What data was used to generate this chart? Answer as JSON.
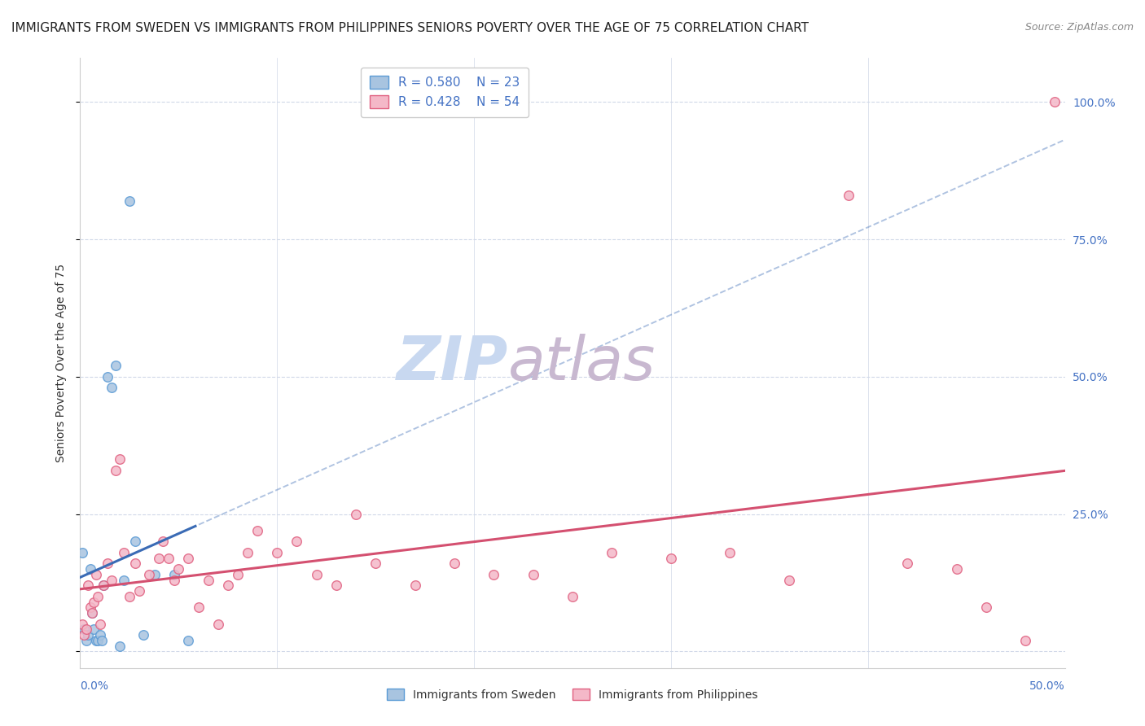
{
  "title": "IMMIGRANTS FROM SWEDEN VS IMMIGRANTS FROM PHILIPPINES SENIORS POVERTY OVER THE AGE OF 75 CORRELATION CHART",
  "source": "Source: ZipAtlas.com",
  "ylabel": "Seniors Poverty Over the Age of 75",
  "ytick_values": [
    0.0,
    0.25,
    0.5,
    0.75,
    1.0
  ],
  "xlim": [
    0.0,
    0.5
  ],
  "ylim": [
    -0.03,
    1.08
  ],
  "sweden_color": "#a8c4e0",
  "sweden_edge_color": "#5b9bd5",
  "philippines_color": "#f4b8c8",
  "philippines_edge_color": "#e06080",
  "sweden_line_color": "#3a6bb5",
  "philippines_line_color": "#d45070",
  "R_sweden": 0.58,
  "N_sweden": 23,
  "R_philippines": 0.428,
  "N_philippines": 54,
  "legend_label_sweden": "Immigrants from Sweden",
  "legend_label_philippines": "Immigrants from Philippines",
  "watermark_zip": "ZIP",
  "watermark_atlas": "atlas",
  "watermark_color_zip": "#c8d8f0",
  "watermark_color_atlas": "#c8b8d0",
  "background_color": "#ffffff",
  "grid_color": "#d0d8e8",
  "title_fontsize": 11,
  "axis_label_fontsize": 10,
  "legend_fontsize": 11,
  "marker_size": 70,
  "sweden_x": [
    0.001,
    0.002,
    0.003,
    0.004,
    0.005,
    0.006,
    0.007,
    0.008,
    0.009,
    0.01,
    0.011,
    0.012,
    0.014,
    0.016,
    0.018,
    0.02,
    0.022,
    0.025,
    0.028,
    0.032,
    0.038,
    0.048,
    0.055
  ],
  "sweden_y": [
    0.18,
    0.04,
    0.02,
    0.03,
    0.15,
    0.07,
    0.04,
    0.02,
    0.02,
    0.03,
    0.02,
    0.12,
    0.5,
    0.48,
    0.52,
    0.01,
    0.13,
    0.82,
    0.2,
    0.03,
    0.14,
    0.14,
    0.02
  ],
  "philippines_x": [
    0.001,
    0.002,
    0.003,
    0.004,
    0.005,
    0.006,
    0.007,
    0.008,
    0.009,
    0.01,
    0.012,
    0.014,
    0.016,
    0.018,
    0.02,
    0.022,
    0.025,
    0.028,
    0.03,
    0.035,
    0.04,
    0.042,
    0.045,
    0.048,
    0.05,
    0.055,
    0.06,
    0.065,
    0.07,
    0.075,
    0.08,
    0.085,
    0.09,
    0.1,
    0.11,
    0.12,
    0.13,
    0.14,
    0.15,
    0.17,
    0.19,
    0.21,
    0.23,
    0.25,
    0.27,
    0.3,
    0.33,
    0.36,
    0.39,
    0.42,
    0.445,
    0.46,
    0.48,
    0.495
  ],
  "philippines_y": [
    0.05,
    0.03,
    0.04,
    0.12,
    0.08,
    0.07,
    0.09,
    0.14,
    0.1,
    0.05,
    0.12,
    0.16,
    0.13,
    0.33,
    0.35,
    0.18,
    0.1,
    0.16,
    0.11,
    0.14,
    0.17,
    0.2,
    0.17,
    0.13,
    0.15,
    0.17,
    0.08,
    0.13,
    0.05,
    0.12,
    0.14,
    0.18,
    0.22,
    0.18,
    0.2,
    0.14,
    0.12,
    0.25,
    0.16,
    0.12,
    0.16,
    0.14,
    0.14,
    0.1,
    0.18,
    0.17,
    0.18,
    0.13,
    0.83,
    0.16,
    0.15,
    0.08,
    0.02,
    1.0
  ]
}
